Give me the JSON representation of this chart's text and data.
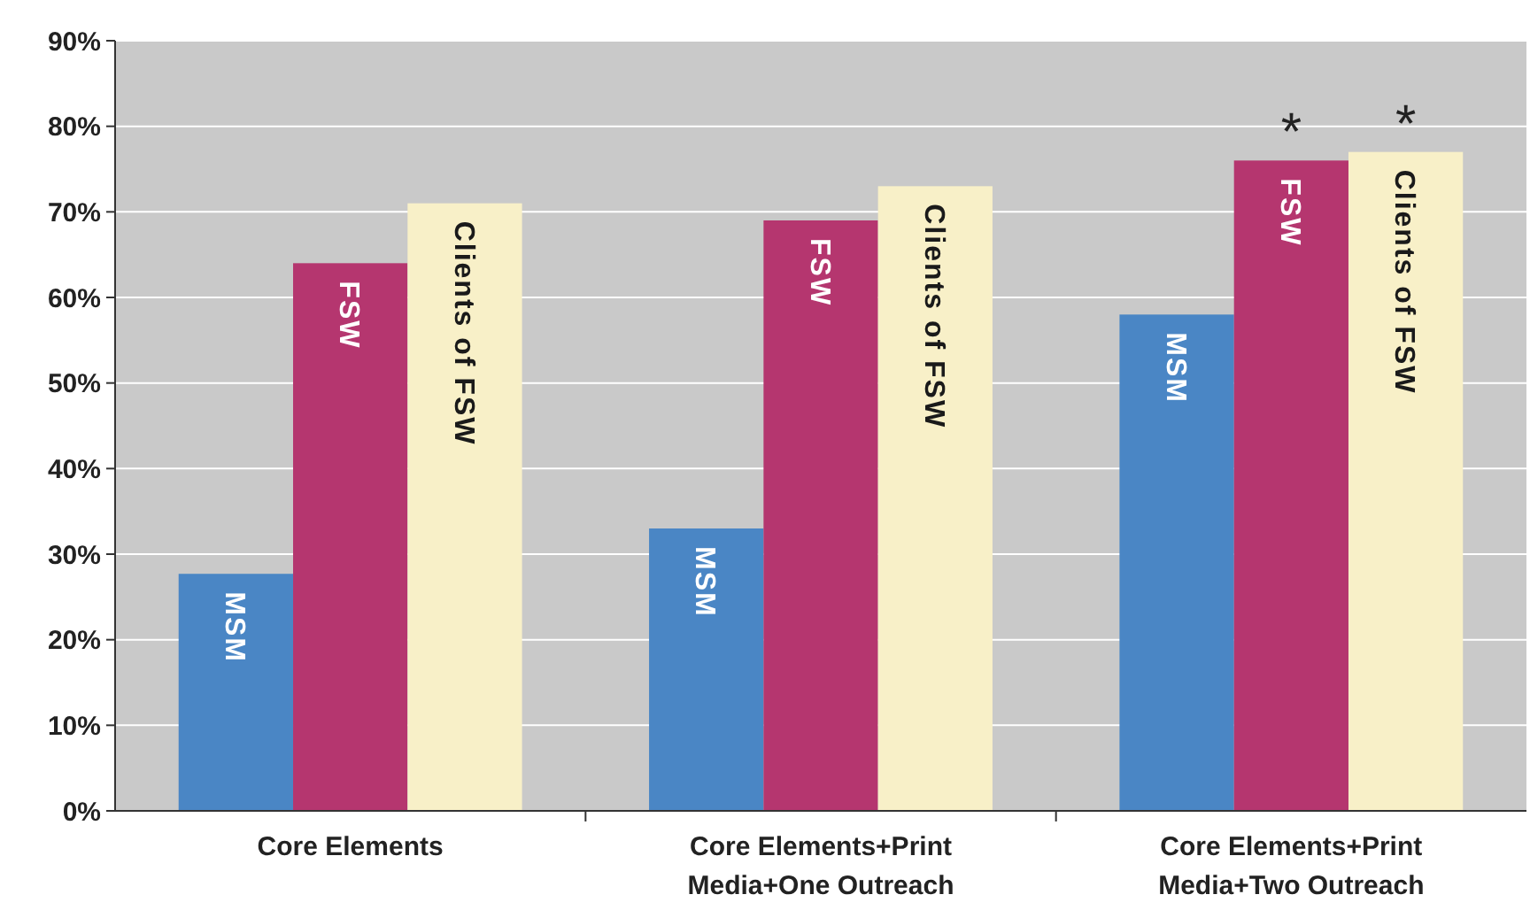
{
  "chart_data": {
    "type": "bar",
    "categories": [
      "Core Elements",
      "Core Elements+Print Media+One Outreach",
      "Core Elements+Print Media+Two Outreach"
    ],
    "series": [
      {
        "name": "MSM",
        "color": "#4a86c5",
        "values": [
          27.7,
          33,
          58
        ]
      },
      {
        "name": "FSW",
        "color": "#b5366f",
        "values": [
          64,
          69,
          76
        ]
      },
      {
        "name": "Clients of FSW",
        "color": "#f8f0c8",
        "values": [
          71,
          73,
          77
        ]
      }
    ],
    "ylim": [
      0,
      90
    ],
    "yticks": [
      {
        "value": 0,
        "label": "0%"
      },
      {
        "value": 10,
        "label": "10%"
      },
      {
        "value": 20,
        "label": "20%"
      },
      {
        "value": 30,
        "label": "30%"
      },
      {
        "value": 40,
        "label": "40%"
      },
      {
        "value": 50,
        "label": "50%"
      },
      {
        "value": 60,
        "label": "60%"
      },
      {
        "value": 70,
        "label": "70%"
      },
      {
        "value": 80,
        "label": "80%"
      },
      {
        "value": 90,
        "label": "90%"
      }
    ],
    "grid": "y",
    "annotations": [
      "*",
      "*"
    ]
  }
}
